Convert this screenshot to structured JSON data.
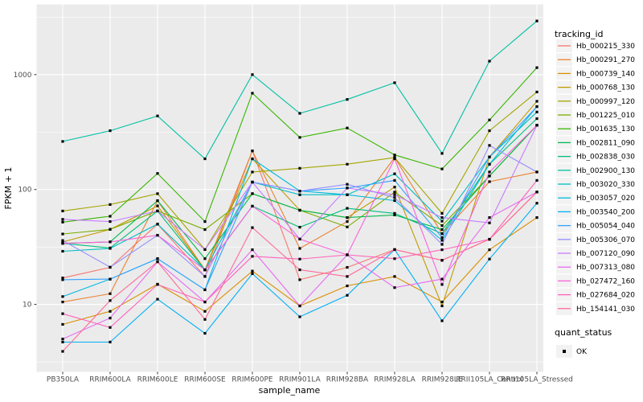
{
  "chart_data": {
    "type": "line",
    "title": "",
    "xlabel": "sample_name",
    "ylabel": "FPKM + 1",
    "x_categories": [
      "PB350LA",
      "RRIM600LA",
      "RRIM600LE",
      "RRIM600SE",
      "RRIM600PE",
      "RRIM901LA",
      "RRIM928BA",
      "RRIM928LA",
      "RRIM928LE",
      "RRII105LA_Control",
      "RRII105LA_Stressed"
    ],
    "y_ticks": [
      10,
      100,
      1000
    ],
    "y_minor_ticks": [
      3.162,
      31.62,
      316.2,
      3162
    ],
    "y_scale": "log10",
    "ylim": [
      2.6,
      3900
    ],
    "grid": true,
    "legend_position": "right",
    "legend_title": "tracking_id",
    "quant_legend_title": "quant_status",
    "quant_legend_items": [
      "OK"
    ],
    "panel_bg": "#EBEBEB",
    "grid_color": "#FFFFFF",
    "legend_key_bg": "#F2F2F2",
    "point_color": "#000000",
    "series": [
      {
        "name": "Hb_000215_330",
        "color": "#F8766D",
        "values": [
          17,
          21,
          50,
          17.5,
          217,
          16.4,
          21,
          30,
          24.2,
          36.9,
          95
        ]
      },
      {
        "name": "Hb_000291_270",
        "color": "#EA8331",
        "values": [
          10.5,
          12.4,
          80,
          20,
          217,
          30.7,
          52.6,
          190,
          41.3,
          117,
          142
        ]
      },
      {
        "name": "Hb_000739_140",
        "color": "#D89000",
        "values": [
          6.7,
          8.7,
          15,
          8.7,
          19.5,
          9.7,
          14.5,
          17.5,
          10.5,
          29.9,
          57
        ]
      },
      {
        "name": "Hb_000768_130",
        "color": "#C09B00",
        "values": [
          35,
          45,
          72,
          20,
          185,
          66,
          57,
          105,
          9.7,
          192,
          586
        ]
      },
      {
        "name": "Hb_000997_120",
        "color": "#A3A500",
        "values": [
          65,
          74,
          92,
          30,
          142,
          153,
          166,
          190,
          62,
          325,
          706
        ]
      },
      {
        "name": "Hb_001225_010",
        "color": "#7CAE00",
        "values": [
          41,
          45,
          65,
          44.8,
          92,
          66,
          47.2,
          95,
          48.5,
          131,
          362
        ]
      },
      {
        "name": "Hb_001635_130",
        "color": "#39B600",
        "values": [
          52,
          58.5,
          138,
          52.6,
          689,
          284,
          343,
          200,
          151,
          403,
          1150
        ]
      },
      {
        "name": "Hb_002811_090",
        "color": "#00BB4E",
        "values": [
          34,
          35,
          80,
          25,
          92,
          66,
          57,
          60,
          44.8,
          131,
          362
        ]
      },
      {
        "name": "Hb_002838_030",
        "color": "#00BF7D",
        "values": [
          34,
          31,
          65,
          20,
          71.6,
          47,
          68.6,
          62,
          41.3,
          166,
          414
        ]
      },
      {
        "name": "Hb_002900_130",
        "color": "#00C1A3",
        "values": [
          262,
          325,
          437,
          185,
          1000,
          460,
          608,
          850,
          206,
          1310,
          2930
        ]
      },
      {
        "name": "Hb_003020_330",
        "color": "#00BFC4",
        "values": [
          29,
          30.7,
          50,
          20,
          116,
          90,
          90,
          137,
          53,
          192,
          473
        ]
      },
      {
        "name": "Hb_003057_020",
        "color": "#00BAE0",
        "values": [
          11.7,
          16.6,
          25,
          13.4,
          185,
          97,
          90,
          80,
          36.1,
          166,
          527
        ]
      },
      {
        "name": "Hb_003540_200",
        "color": "#00B0F6",
        "values": [
          4.7,
          4.7,
          11.1,
          5.6,
          18.5,
          7.8,
          12,
          30,
          7.2,
          24.8,
          76
        ]
      },
      {
        "name": "Hb_005054_040",
        "color": "#35A2FF",
        "values": [
          16.4,
          16.6,
          25,
          13.4,
          116,
          97,
          103,
          120,
          38.1,
          192,
          527
        ]
      },
      {
        "name": "Hb_005306_070",
        "color": "#9590FF",
        "values": [
          36,
          21.1,
          40,
          17.5,
          116,
          97,
          111,
          85,
          33.3,
          242,
          142
        ]
      },
      {
        "name": "Hb_007120_090",
        "color": "#C77CFF",
        "values": [
          55,
          52.6,
          65,
          30,
          116,
          37,
          103,
          90,
          57,
          51.2,
          362
        ]
      },
      {
        "name": "Hb_007313_080",
        "color": "#E76BF3",
        "values": [
          5,
          7.6,
          23.5,
          10.5,
          29.9,
          9.7,
          27,
          14,
          16.6,
          57,
          95
        ]
      },
      {
        "name": "Hb_027472_160",
        "color": "#FA62DB",
        "values": [
          34,
          35,
          40,
          20,
          71.6,
          37,
          27,
          185,
          14.9,
          142,
          362
        ]
      },
      {
        "name": "Hb_027684_020",
        "color": "#FF62BC",
        "values": [
          8.3,
          6.3,
          14.9,
          10.5,
          26.2,
          24.8,
          27,
          25,
          29.9,
          36.9,
          120
        ]
      },
      {
        "name": "Hb_154141_030",
        "color": "#FF6A98",
        "values": [
          3.9,
          10.8,
          23.5,
          7.4,
          46.6,
          20,
          17.5,
          30,
          24.2,
          36.9,
          95
        ]
      }
    ]
  }
}
